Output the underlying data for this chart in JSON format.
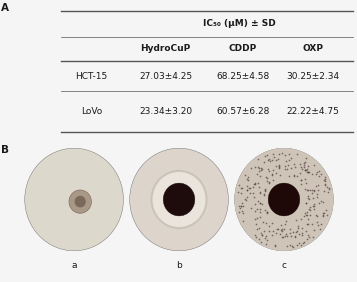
{
  "panel_A_label": "A",
  "panel_B_label": "B",
  "table_header": "IC₅₀ (μM) ± SD",
  "col_headers": [
    "HydroCuP",
    "CDDP",
    "OXP"
  ],
  "row_labels": [
    "HCT-15",
    "LoVo"
  ],
  "cell_data": [
    [
      "27.03±4.25",
      "68.25±4.58",
      "30.25±2.34"
    ],
    [
      "23.34±3.20",
      "60.57±6.28",
      "22.22±4.75"
    ]
  ],
  "image_labels": [
    "a",
    "b",
    "c"
  ],
  "bg_color": "#f5f5f5",
  "text_color": "#1a1a1a",
  "table_line_color": "#555555",
  "panel_image_bg": "#111111",
  "well_fill_colors": [
    "#e8e0d0",
    "#e0d8cc",
    "#d8ccc4"
  ],
  "spheroid_color_a": "#9a8878",
  "spheroid_color_bc": "#2a1010",
  "font_size_table": 6.5,
  "font_size_label": 7.5
}
